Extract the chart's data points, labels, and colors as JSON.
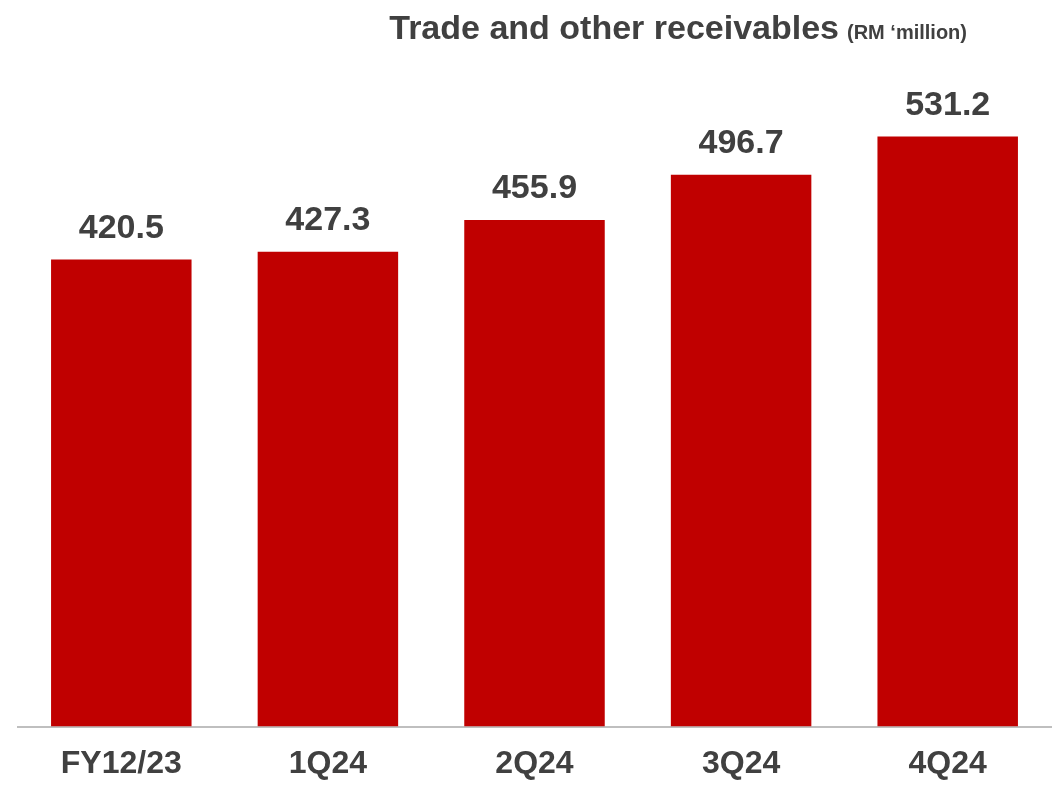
{
  "chart_data": {
    "type": "bar",
    "title": "Trade and other receivables",
    "subtitle": "(RM ‘million)",
    "categories": [
      "FY12/23",
      "1Q24",
      "2Q24",
      "3Q24",
      "4Q24"
    ],
    "values": [
      420.5,
      427.3,
      455.9,
      496.7,
      531.2
    ],
    "color": "#c00000",
    "data_labels": true,
    "grid": false,
    "legend": false
  }
}
